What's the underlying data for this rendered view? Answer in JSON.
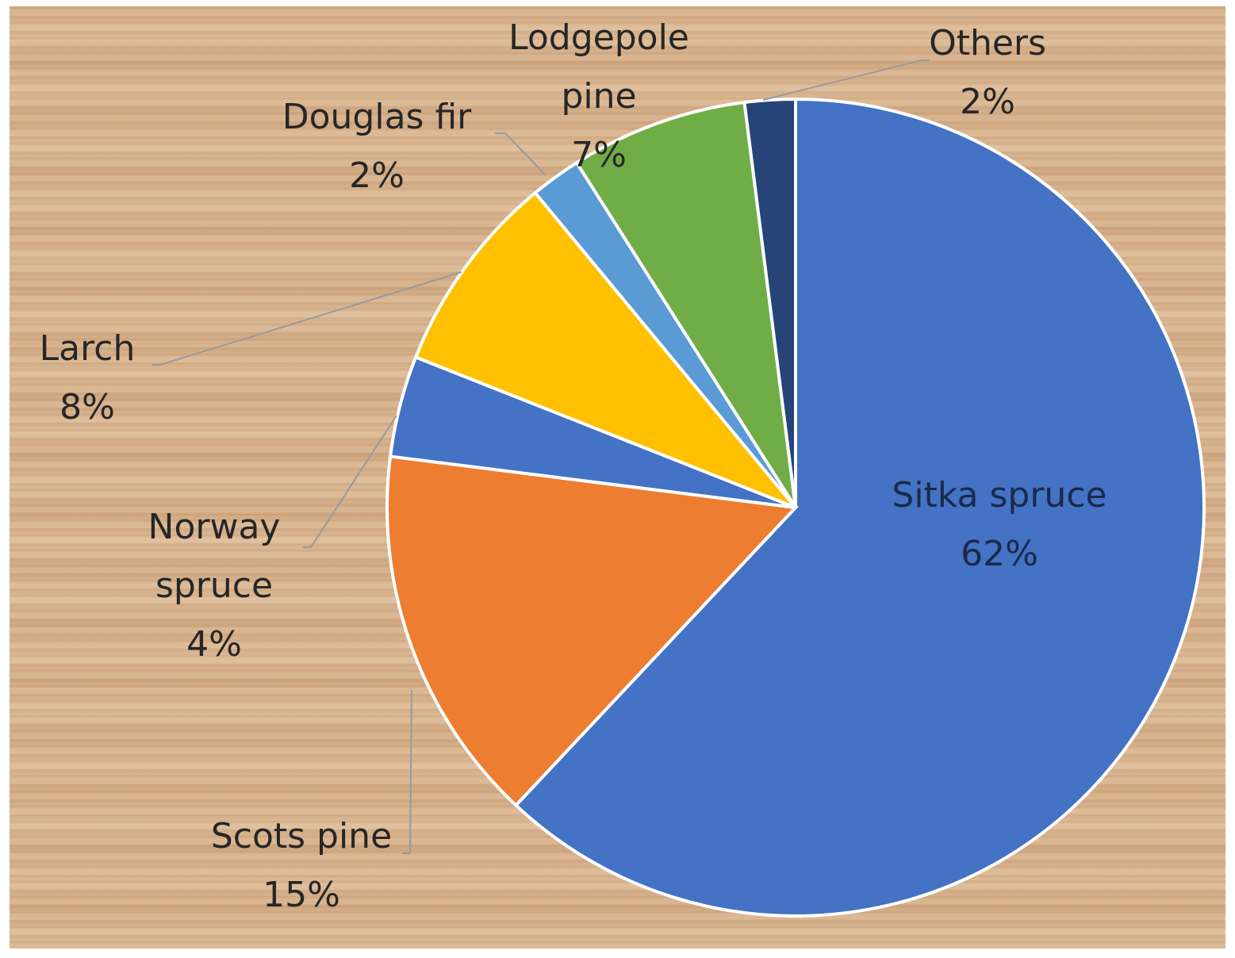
{
  "chart_data": {
    "type": "pie",
    "categories": [
      "Sitka spruce",
      "Scots pine",
      "Norway spruce",
      "Larch",
      "Douglas fir",
      "Lodgepole pine",
      "Others"
    ],
    "values": [
      62,
      15,
      4,
      8,
      2,
      7,
      2
    ],
    "value_labels": [
      "62%",
      "15%",
      "4%",
      "8%",
      "2%",
      "7%",
      "2%"
    ],
    "colors": [
      "#4472c4",
      "#ed7d31",
      "#4472c4",
      "#ffc000",
      "#5b9bd5",
      "#70ad47",
      "#264478"
    ]
  }
}
